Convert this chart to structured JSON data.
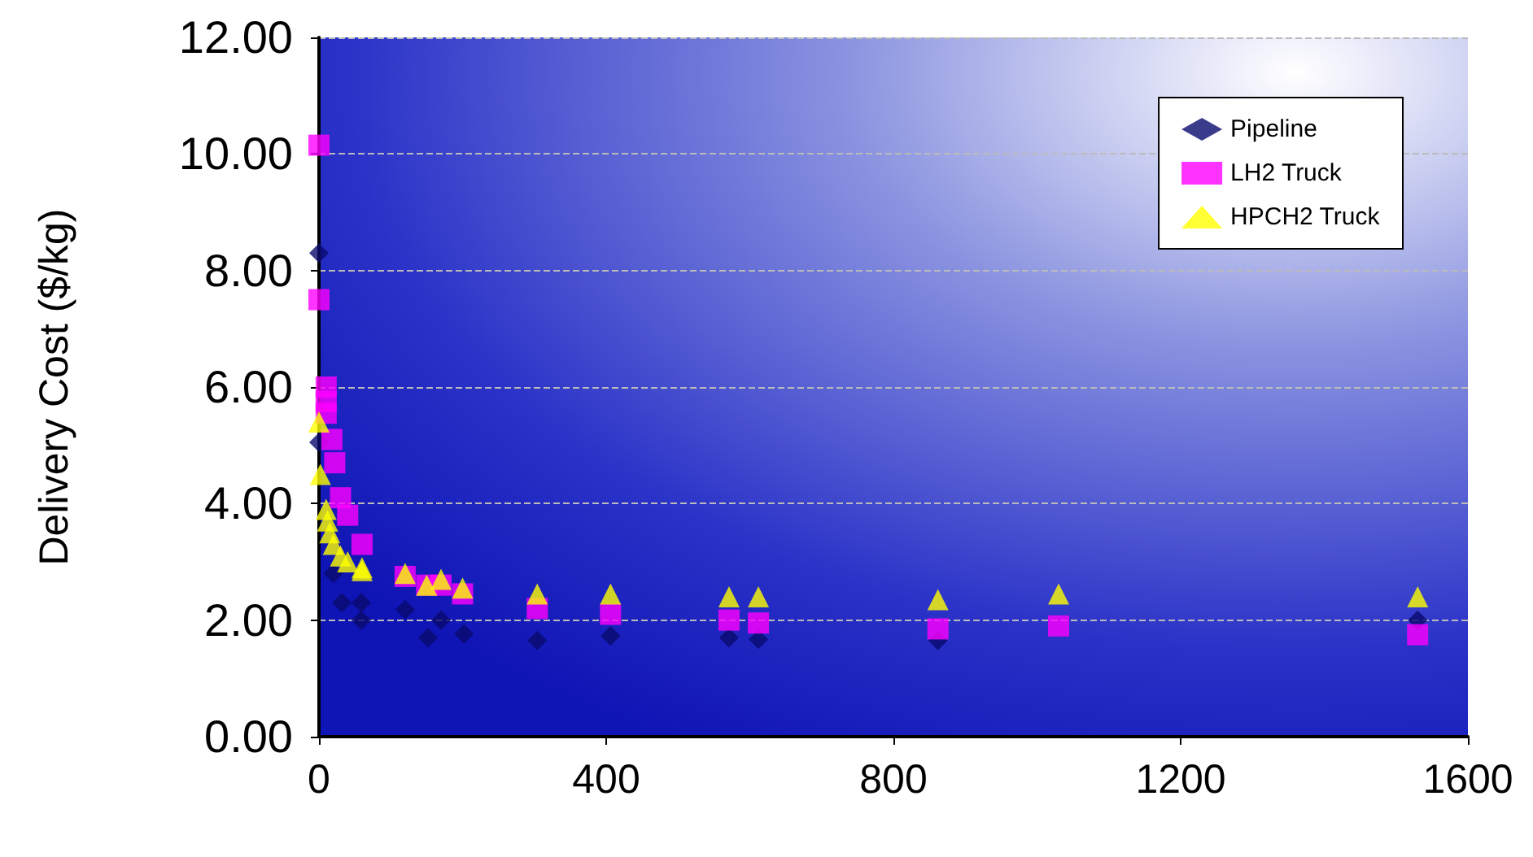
{
  "chart_data": {
    "type": "scatter",
    "ylabel": "Delivery Cost ($/kg)",
    "xlim": [
      0,
      1600
    ],
    "xticks": [
      0,
      400,
      800,
      1200,
      1600
    ],
    "ylim": [
      0,
      12
    ],
    "yticks": [
      {
        "value": 0,
        "label": "0.00"
      },
      {
        "value": 2,
        "label": "2.00"
      },
      {
        "value": 4,
        "label": "4.00"
      },
      {
        "value": 6,
        "label": "6.00"
      },
      {
        "value": 8,
        "label": "8.00"
      },
      {
        "value": 10,
        "label": "10.00"
      },
      {
        "value": 12,
        "label": "12.00"
      }
    ],
    "grid": "y",
    "legend": "top right",
    "series": [
      {
        "name": "Pipeline",
        "color": "#0a0a6e",
        "marker": "diamond",
        "x": [
          0,
          0,
          20,
          32,
          59,
          59,
          120,
          152,
          170,
          202,
          304,
          406,
          571,
          612,
          862,
          1530
        ],
        "values": [
          8.3,
          5.05,
          2.8,
          2.3,
          2.3,
          2.0,
          2.18,
          1.7,
          2.0,
          1.76,
          1.65,
          1.73,
          1.7,
          1.67,
          1.65,
          2.0
        ]
      },
      {
        "name": "LH2 Truck",
        "color": "#ff00ff",
        "marker": "square",
        "x": [
          0,
          0,
          10,
          10,
          10,
          18,
          22,
          30,
          40,
          60,
          120,
          150,
          170,
          200,
          304,
          406,
          571,
          612,
          862,
          1030,
          1530
        ],
        "values": [
          10.15,
          7.5,
          6.0,
          5.75,
          5.55,
          5.1,
          4.7,
          4.1,
          3.8,
          3.3,
          2.75,
          2.6,
          2.6,
          2.45,
          2.2,
          2.1,
          2.0,
          1.95,
          1.85,
          1.9,
          1.75
        ]
      },
      {
        "name": "HPCH2 Truck",
        "color": "#ffff00",
        "marker": "triangle",
        "x": [
          0,
          2,
          10,
          12,
          15,
          20,
          30,
          40,
          60,
          60,
          120,
          150,
          170,
          200,
          304,
          406,
          571,
          612,
          862,
          1030,
          1530
        ],
        "values": [
          5.4,
          4.5,
          3.9,
          3.7,
          3.5,
          3.3,
          3.1,
          3.0,
          2.9,
          2.85,
          2.8,
          2.6,
          2.7,
          2.55,
          2.45,
          2.45,
          2.4,
          2.4,
          2.35,
          2.45,
          2.4
        ]
      }
    ]
  }
}
